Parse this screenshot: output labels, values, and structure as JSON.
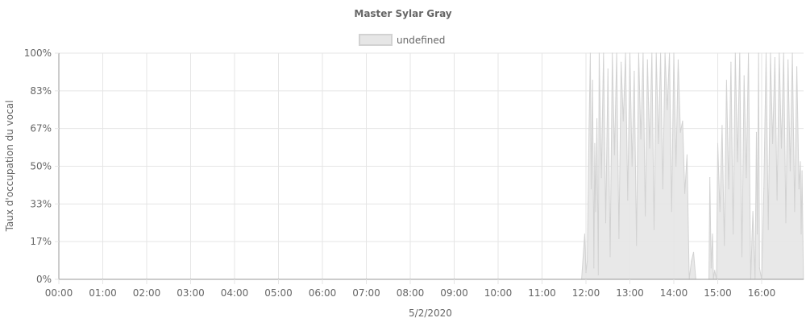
{
  "chart_data": {
    "type": "area",
    "title": "Master Sylar Gray",
    "xlabel": "5/2/2020",
    "ylabel": "Taux d'occupation du vocal",
    "x_unit": "hour",
    "xlim": [
      0,
      16.95
    ],
    "ylim": [
      0,
      100
    ],
    "x_ticks": [
      "00:00",
      "01:00",
      "02:00",
      "03:00",
      "04:00",
      "05:00",
      "06:00",
      "07:00",
      "08:00",
      "09:00",
      "10:00",
      "11:00",
      "12:00",
      "13:00",
      "14:00",
      "15:00",
      "16:00"
    ],
    "y_ticks": [
      "0%",
      "17%",
      "33%",
      "50%",
      "67%",
      "83%",
      "100%"
    ],
    "y_tick_values": [
      0,
      16.67,
      33.33,
      50,
      66.67,
      83.33,
      100
    ],
    "grid": true,
    "legend": {
      "position": "top",
      "entries": [
        "undefined"
      ]
    },
    "colors": {
      "fill": "#e6e6e6",
      "stroke": "#d2d2d2",
      "grid": "#e5e5e5",
      "axis": "#999999"
    },
    "series": [
      {
        "name": "undefined",
        "x": [
          0,
          11.9,
          11.97,
          12.0,
          12.03,
          12.07,
          12.1,
          12.12,
          12.15,
          12.18,
          12.2,
          12.22,
          12.25,
          12.28,
          12.3,
          12.35,
          12.4,
          12.45,
          12.5,
          12.55,
          12.6,
          12.65,
          12.7,
          12.75,
          12.8,
          12.85,
          12.9,
          12.95,
          13.0,
          13.05,
          13.1,
          13.15,
          13.2,
          13.25,
          13.3,
          13.35,
          13.4,
          13.45,
          13.5,
          13.55,
          13.6,
          13.65,
          13.7,
          13.75,
          13.8,
          13.85,
          13.9,
          13.95,
          14.0,
          14.05,
          14.1,
          14.15,
          14.2,
          14.25,
          14.3,
          14.35,
          14.4,
          14.45,
          14.5,
          14.55,
          14.6,
          14.8,
          14.82,
          14.85,
          14.88,
          14.9,
          14.93,
          14.97,
          15.0,
          15.05,
          15.1,
          15.15,
          15.2,
          15.25,
          15.3,
          15.35,
          15.4,
          15.45,
          15.5,
          15.55,
          15.6,
          15.65,
          15.7,
          15.75,
          15.8,
          15.85,
          15.88,
          15.9,
          15.93,
          15.95,
          16.0,
          16.05,
          16.1,
          16.15,
          16.2,
          16.25,
          16.3,
          16.35,
          16.4,
          16.45,
          16.5,
          16.55,
          16.6,
          16.65,
          16.7,
          16.75,
          16.8,
          16.85,
          16.88,
          16.9,
          16.92,
          16.95
        ],
        "y": [
          0,
          0,
          20,
          3,
          8,
          66,
          100,
          40,
          88,
          5,
          60,
          30,
          71,
          2,
          100,
          45,
          100,
          25,
          93,
          10,
          100,
          55,
          100,
          18,
          96,
          70,
          100,
          35,
          100,
          50,
          92,
          15,
          100,
          62,
          100,
          28,
          97,
          58,
          100,
          22,
          100,
          60,
          100,
          40,
          100,
          75,
          100,
          30,
          100,
          50,
          97,
          65,
          70,
          38,
          55,
          0,
          8,
          12,
          0,
          0,
          0,
          0,
          45,
          5,
          20,
          0,
          4,
          0,
          60,
          30,
          68,
          15,
          88,
          40,
          96,
          20,
          100,
          52,
          100,
          10,
          90,
          45,
          100,
          0,
          30,
          0,
          65,
          20,
          100,
          5,
          0,
          40,
          100,
          22,
          100,
          60,
          98,
          35,
          100,
          58,
          100,
          25,
          97,
          48,
          100,
          30,
          94,
          40,
          52,
          20,
          48,
          0
        ]
      }
    ]
  }
}
